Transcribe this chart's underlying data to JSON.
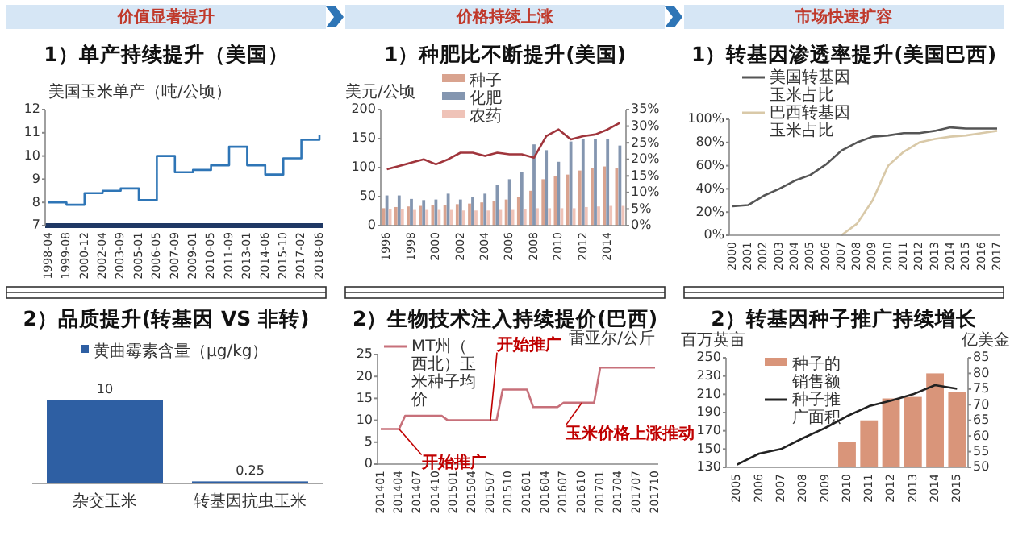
{
  "chart_data": [
    {
      "type": "step",
      "subtitle": "价值显著提升",
      "title": "1）单产持续提升（美国）",
      "ylabel": "美国玉米单产（吨/公顷）",
      "categories": [
        "1998-04",
        "1999-08",
        "2000-12",
        "2002-04",
        "2003-09",
        "2005-01",
        "2006-05",
        "2007-09",
        "2009-01",
        "2010-05",
        "2011-09",
        "2013-01",
        "2014-06",
        "2015-10",
        "2017-02",
        "2018-06"
      ],
      "values": [
        8.0,
        7.9,
        8.4,
        8.5,
        8.6,
        8.1,
        10.0,
        9.3,
        9.4,
        9.6,
        10.4,
        9.6,
        9.2,
        9.9,
        10.7,
        10.9
      ],
      "color": "#2e75b6",
      "ylim": [
        7,
        12
      ],
      "yticks": [
        7,
        8,
        9,
        10,
        11,
        12
      ]
    },
    {
      "type": "bar",
      "subtitle": "价格持续上涨",
      "title": "1）种肥比不断提升(美国)",
      "ylabel": "美元/公顷",
      "categories": [
        "1996",
        null,
        "1998",
        null,
        "2000",
        null,
        "2002",
        null,
        "2004",
        null,
        "2006",
        null,
        "2008",
        null,
        "2010",
        null,
        "2012",
        null,
        "2014",
        null
      ],
      "series": [
        {
          "name": "种子",
          "type": "bar",
          "color": "#d9a38f",
          "values": [
            30,
            32,
            33,
            34,
            35,
            36,
            37,
            38,
            40,
            42,
            45,
            50,
            60,
            80,
            85,
            88,
            95,
            100,
            102,
            100
          ]
        },
        {
          "name": "化肥",
          "type": "bar",
          "color": "#8496b0",
          "values": [
            52,
            52,
            46,
            44,
            45,
            55,
            45,
            50,
            55,
            70,
            80,
            93,
            140,
            130,
            110,
            145,
            150,
            150,
            150,
            138
          ]
        },
        {
          "name": "农药",
          "type": "bar",
          "color": "#efc3b8",
          "values": [
            28,
            28,
            27,
            27,
            27,
            27,
            26,
            26,
            26,
            27,
            27,
            28,
            30,
            30,
            30,
            30,
            32,
            33,
            34,
            34
          ]
        },
        {
          "type": "line",
          "axis": "y2",
          "color": "#a0353c",
          "values": [
            17,
            18,
            19,
            20,
            18.5,
            20,
            22,
            22,
            21,
            22,
            21.5,
            21.5,
            20.5,
            27,
            29,
            26,
            27,
            27.5,
            29,
            31
          ]
        }
      ],
      "ylim": [
        0,
        200
      ],
      "yticks": [
        0,
        50,
        100,
        150,
        200
      ],
      "y2lim": [
        0,
        35
      ],
      "y2ticks": [
        {
          "value": 0,
          "label": "0%"
        },
        {
          "value": 5,
          "label": "5%"
        },
        {
          "value": 10,
          "label": "10%"
        },
        {
          "value": 15,
          "label": "15%"
        },
        {
          "value": 20,
          "label": "20%"
        },
        {
          "value": 25,
          "label": "25%"
        },
        {
          "value": 30,
          "label": "30%"
        },
        {
          "value": 35,
          "label": "35%"
        }
      ],
      "legend": "top left"
    },
    {
      "type": "line",
      "subtitle": "市场快速扩容",
      "title": "1）转基因渗透率提升(美国巴西)",
      "categories": [
        "2000",
        "2001",
        "2002",
        "2003",
        "2004",
        "2005",
        "2006",
        "2007",
        "2008",
        "2009",
        "2010",
        "2011",
        "2012",
        "2013",
        "2014",
        "2015",
        "2016",
        "2017"
      ],
      "series": [
        {
          "name": "美国转基因玉米占比",
          "color": "#555555",
          "values": [
            25,
            26,
            34,
            40,
            47,
            52,
            61,
            73,
            80,
            85,
            86,
            88,
            88,
            90,
            93,
            92,
            92,
            92
          ]
        },
        {
          "name": "巴西转基因玉米占比",
          "color": "#d9c9a8",
          "values": [
            null,
            null,
            null,
            null,
            null,
            null,
            null,
            0,
            10,
            30,
            60,
            72,
            80,
            83,
            85,
            86,
            88,
            90
          ]
        }
      ],
      "ylim": [
        0,
        100
      ],
      "yticks": [
        {
          "value": 0,
          "label": "0%"
        },
        {
          "value": 20,
          "label": "20%"
        },
        {
          "value": 40,
          "label": "40%"
        },
        {
          "value": 60,
          "label": "60%"
        },
        {
          "value": 80,
          "label": "80%"
        },
        {
          "value": 100,
          "label": "100%"
        }
      ],
      "legend": "top left"
    },
    {
      "type": "bar",
      "title": "2）品质提升(转基因 VS 非转)",
      "categories": [
        "杂交玉米",
        "转基因抗虫玉米"
      ],
      "series": [
        {
          "name": "黄曲霉素含量（μg/kg）",
          "color": "#2e5fa3",
          "values": [
            10,
            0.25
          ]
        }
      ],
      "data_labels": true,
      "legend": "top",
      "tick_labels": "x"
    },
    {
      "type": "line",
      "title": "2）生物技术注入持续提价(巴西)",
      "ylabel": "雷亚尔/公斤",
      "categories": [
        "201401",
        null,
        null,
        "201404",
        null,
        null,
        "201407",
        null,
        null,
        "201410",
        null,
        null,
        "201501",
        null,
        null,
        "201504",
        null,
        null,
        "201507",
        null,
        null,
        "201510",
        null,
        null,
        "201601",
        null,
        null,
        "201604",
        null,
        null,
        "201607",
        null,
        null,
        "201610",
        null,
        null,
        "201701",
        null,
        null,
        "201704",
        null,
        null,
        "201707",
        null,
        null,
        "201710"
      ],
      "series": [
        {
          "name": "MT州（西北）玉米种子均价",
          "color": "#c7707a",
          "values": [
            8,
            8,
            8,
            8,
            11,
            11,
            11,
            11,
            11,
            11,
            11,
            10,
            10,
            10,
            10,
            10,
            10,
            10,
            10,
            10,
            17,
            17,
            17,
            17,
            17,
            13,
            13,
            13,
            13,
            13,
            14,
            14,
            14,
            14,
            14,
            14,
            22,
            22,
            22,
            22,
            22,
            22,
            22,
            22,
            22,
            22
          ]
        }
      ],
      "ylim": [
        0,
        25
      ],
      "yticks": [
        0,
        5,
        10,
        15,
        20,
        25
      ],
      "legend": "top left",
      "annotations": [
        {
          "text": "开始推广",
          "x": "201404",
          "y": 8
        },
        {
          "text": "开始推广",
          "x": "201507",
          "y": 10
        },
        {
          "text": "玉米价格上涨推动",
          "x": "201610",
          "y": 14
        }
      ]
    },
    {
      "type": "bar",
      "title": "2）转基因种子推广持续增长",
      "ylabel": "百万英亩",
      "y2label": "亿美金",
      "categories": [
        "2005",
        "2006",
        "2007",
        "2008",
        "2009",
        "2010",
        "2011",
        "2012",
        "2013",
        "2014",
        "2015"
      ],
      "series": [
        {
          "name": "种子的销售额",
          "type": "bar",
          "axis": "y2",
          "color": "#d9957a",
          "values": [
            null,
            null,
            null,
            null,
            null,
            58,
            65,
            72,
            72.5,
            80,
            74
          ]
        },
        {
          "name": "种子推广面积",
          "type": "line",
          "color": "#222222",
          "values": [
            133,
            145,
            150,
            162,
            173,
            186,
            197,
            203,
            210,
            220,
            216
          ]
        }
      ],
      "ylim": [
        130,
        250
      ],
      "yticks": [
        130,
        150,
        170,
        190,
        210,
        230,
        250
      ],
      "y2lim": [
        50,
        85
      ],
      "y2ticks": [
        50,
        55,
        60,
        65,
        70,
        75,
        80,
        85
      ],
      "legend": "top left"
    }
  ]
}
